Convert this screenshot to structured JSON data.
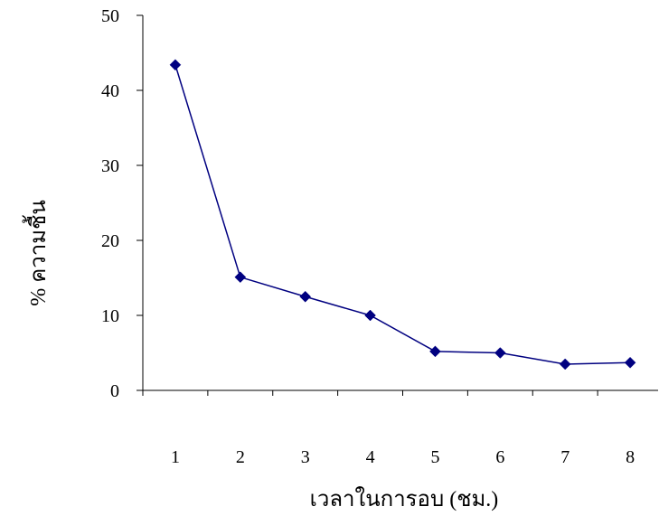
{
  "chart_data": {
    "type": "line",
    "title": "",
    "xlabel": "เวลาในการอบ (ชม.)",
    "ylabel": "% ความชื้น",
    "categories": [
      "1",
      "2",
      "3",
      "4",
      "5",
      "6",
      "7",
      "8"
    ],
    "series": [
      {
        "values": [
          43.4,
          15.1,
          12.5,
          10.0,
          5.2,
          5.0,
          3.5,
          3.7
        ]
      }
    ],
    "ylim": [
      0,
      50
    ],
    "yticks": [
      "0",
      "10",
      "20",
      "30",
      "40",
      "50"
    ],
    "grid": false,
    "legend": "none",
    "colors": {
      "series": "#000080",
      "axis": "#000000"
    },
    "marker": "diamond"
  }
}
